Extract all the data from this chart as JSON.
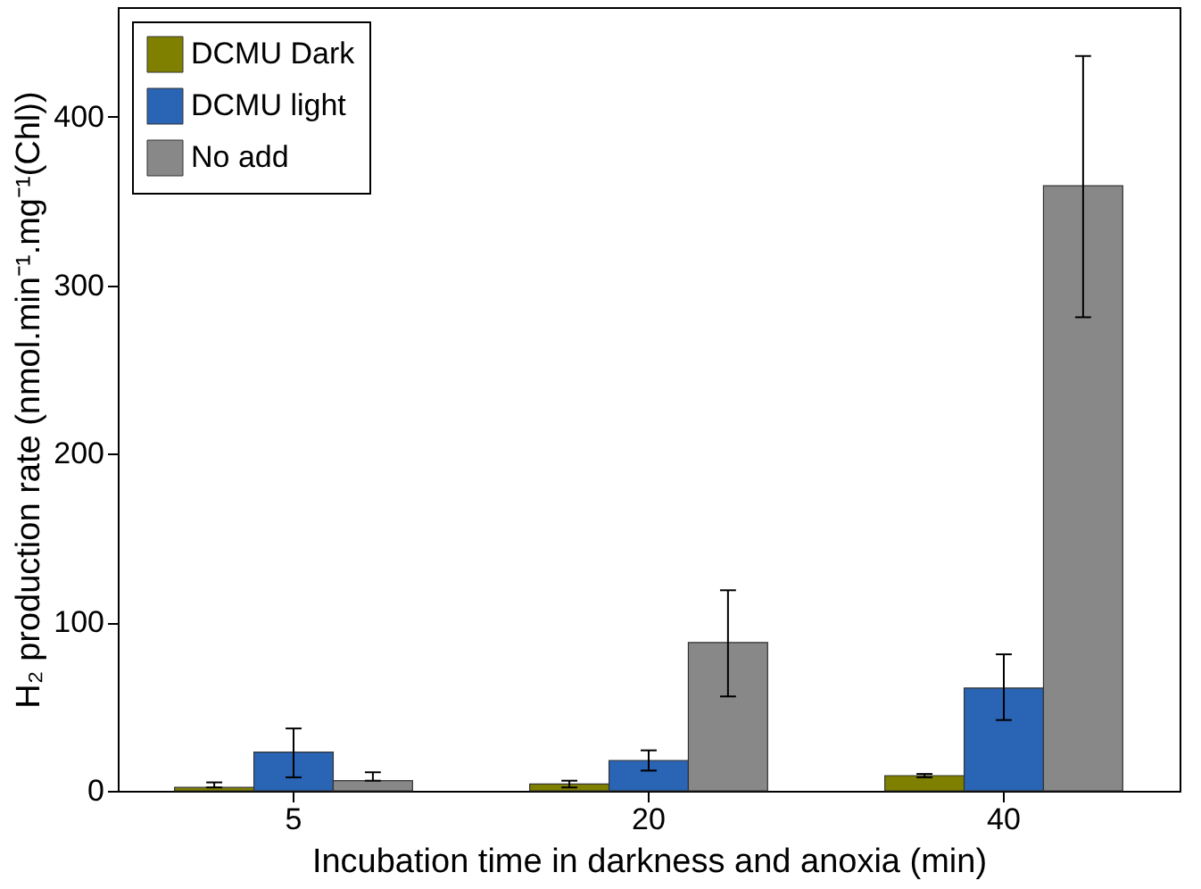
{
  "chart_data": {
    "type": "bar",
    "xlabel": "Incubation time in darkness and anoxia (min)",
    "ylabel": "H₂ production rate (nmol.min⁻¹.mg⁻¹(Chl))",
    "categories": [
      "5",
      "20",
      "40"
    ],
    "series": [
      {
        "name": "DCMU Dark",
        "color": "#808000",
        "values": [
          2,
          4,
          9
        ],
        "errors": [
          [
            2,
            5
          ],
          [
            2,
            6
          ],
          [
            8,
            10
          ]
        ]
      },
      {
        "name": "DCMU light",
        "color": "#2a64b4",
        "values": [
          23,
          18,
          61
        ],
        "errors": [
          [
            8,
            37
          ],
          [
            12,
            24
          ],
          [
            42,
            81
          ]
        ]
      },
      {
        "name": "No add",
        "color": "#888888",
        "values": [
          6,
          88,
          359
        ],
        "errors": [
          [
            6,
            11
          ],
          [
            56,
            119
          ],
          [
            281,
            436
          ]
        ]
      }
    ],
    "ylim": [
      0,
      465
    ],
    "yticks": [
      0,
      100,
      200,
      300,
      400
    ],
    "grid": false,
    "legend": "top left"
  }
}
